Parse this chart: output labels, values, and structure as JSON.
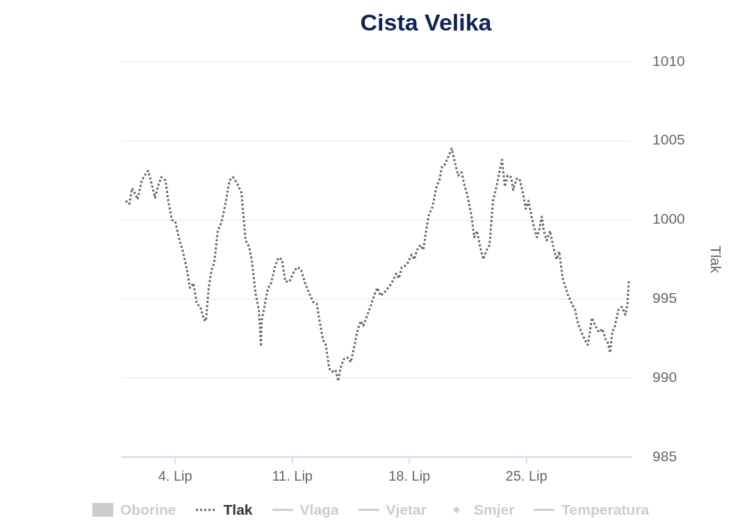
{
  "chart_data": {
    "type": "line",
    "title": "Cista Velika",
    "ylabel": "Tlak",
    "grid": "y",
    "legend": "bottom",
    "line_style": "dotted",
    "xlim": [
      "--05-31T19:00",
      "--07-01T07:00"
    ],
    "xticks": [
      {
        "value": "--06-04",
        "label": "4. Lip"
      },
      {
        "value": "--06-11",
        "label": "11. Lip"
      },
      {
        "value": "--06-18",
        "label": "18. Lip"
      },
      {
        "value": "--06-25",
        "label": "25. Lip"
      }
    ],
    "ylim": [
      985,
      1010
    ],
    "yticks": [
      985,
      990,
      995,
      1000,
      1005,
      1010
    ],
    "series": [
      {
        "name": "Oborine",
        "type": "bar",
        "color": "#cccccc"
      },
      {
        "name": "Tlak",
        "color": "#666666",
        "x": [
          "--06-01T01:00",
          "--06-01T06:00",
          "--06-01T10:00",
          "--06-01T15:00",
          "--06-01T18:00",
          "--06-02T00:00",
          "--06-02T04:00",
          "--06-02T09:00",
          "--06-02T13:00",
          "--06-02T19:00",
          "--06-02T23:00",
          "--06-03T04:00",
          "--06-03T10:00",
          "--06-03T14:00",
          "--06-03T19:00",
          "--06-04T00:00",
          "--06-04T05:00",
          "--06-04T11:00",
          "--06-04T17:00",
          "--06-04T21:00",
          "--06-05T02:00",
          "--06-05T07:00",
          "--06-05T12:00",
          "--06-05T17:00",
          "--06-05T20:00",
          "--06-06T00:00",
          "--06-06T04:00",
          "--06-06T08:00",
          "--06-06T13:00",
          "--06-06T18:00",
          "--06-07T00:00",
          "--06-07T06:00",
          "--06-07T11:00",
          "--06-07T18:00",
          "--06-07T23:00",
          "--06-08T05:00",
          "--06-08T10:00",
          "--06-08T14:00",
          "--06-08T19:00",
          "--06-09T00:00",
          "--06-09T03:00",
          "--06-09T04:00",
          "--06-09T08:00",
          "--06-09T13:00",
          "--06-09T17:00",
          "--06-09T23:00",
          "--06-10T04:00",
          "--06-10T09:00",
          "--06-10T14:00",
          "--06-10T20:00",
          "--06-11T03:00",
          "--06-11T08:00",
          "--06-11T13:00",
          "--06-11T19:00",
          "--06-12T01:00",
          "--06-12T06:00",
          "--06-12T11:00",
          "--06-12T16:00",
          "--06-12T20:00",
          "--06-13T00:00",
          "--06-13T05:00",
          "--06-13T09:00",
          "--06-13T14:00",
          "--06-13T18:00",
          "--06-13T21:00",
          "--06-14T02:00",
          "--06-14T07:00",
          "--06-14T12:00",
          "--06-14T17:00",
          "--06-14T21:00",
          "--06-15T02:00",
          "--06-15T06:00",
          "--06-15T11:00",
          "--06-15T17:00",
          "--06-15T22:00",
          "--06-16T02:00",
          "--06-16T07:00",
          "--06-16T12:00",
          "--06-16T16:00",
          "--06-16T21:00",
          "--06-17T01:00",
          "--06-17T05:00",
          "--06-17T09:00",
          "--06-17T13:00",
          "--06-17T18:00",
          "--06-17T22:00",
          "--06-18T03:00",
          "--06-18T07:00",
          "--06-18T11:00",
          "--06-18T16:00",
          "--06-18T20:00",
          "--06-19T00:00",
          "--06-19T04:00",
          "--06-19T09:00",
          "--06-19T15:00",
          "--06-19T19:00",
          "--06-19T23:00",
          "--06-20T03:00",
          "--06-20T08:00",
          "--06-20T13:00",
          "--06-20T17:00",
          "--06-20T22:00",
          "--06-21T03:00",
          "--06-21T07:00",
          "--06-21T12:00",
          "--06-21T17:00",
          "--06-21T21:00",
          "--06-22T01:00",
          "--06-22T06:00",
          "--06-22T10:00",
          "--06-22T15:00",
          "--06-22T19:00",
          "--06-23T00:00",
          "--06-23T05:00",
          "--06-23T09:00",
          "--06-23T13:00",
          "--06-23T17:00",
          "--06-23T21:00",
          "--06-24T02:00",
          "--06-24T05:00",
          "--06-24T10:00",
          "--06-24T14:00",
          "--06-24T19:00",
          "--06-24T23:00",
          "--06-25T03:00",
          "--06-25T06:00",
          "--06-25T10:00",
          "--06-25T15:00",
          "--06-25T18:00",
          "--06-25T22:00",
          "--06-26T01:00",
          "--06-26T05:00",
          "--06-26T10:00",
          "--06-26T15:00",
          "--06-26T19:00",
          "--06-26T23:00",
          "--06-27T04:00",
          "--06-27T07:00",
          "--06-27T12:00",
          "--06-27T17:00",
          "--06-27T22:00",
          "--06-28T02:00",
          "--06-28T07:00",
          "--06-28T12:00",
          "--06-28T16:00",
          "--06-28T19:00",
          "--06-28T22:00",
          "--06-29T03:00",
          "--06-29T08:00",
          "--06-29T13:00",
          "--06-29T18:00",
          "--06-29T21:00",
          "--06-30T00:00",
          "--06-30T03:00",
          "--06-30T07:00",
          "--06-30T12:00",
          "--06-30T17:00",
          "--06-30T22:00",
          "--07-01T01:00",
          "--07-01T03:00"
        ],
        "values": [
          1001.2,
          1001.0,
          1002.0,
          1001.6,
          1001.3,
          1002.5,
          1002.8,
          1003.1,
          1002.5,
          1001.4,
          1002.1,
          1002.7,
          1002.5,
          1001.2,
          1000.0,
          999.9,
          998.9,
          998.0,
          996.8,
          995.7,
          996.0,
          994.7,
          994.5,
          993.7,
          993.6,
          995.7,
          996.8,
          997.3,
          999.3,
          999.8,
          1001.0,
          1002.5,
          1002.7,
          1002.2,
          1001.7,
          998.7,
          998.3,
          997.4,
          995.4,
          994.3,
          992.0,
          993.6,
          994.5,
          995.7,
          995.9,
          997.0,
          997.6,
          997.5,
          996.1,
          996.1,
          996.8,
          997.0,
          996.8,
          995.9,
          995.3,
          994.8,
          994.7,
          993.4,
          992.4,
          992.1,
          990.6,
          990.4,
          990.5,
          989.8,
          990.6,
          991.2,
          991.3,
          991.0,
          992.0,
          992.9,
          993.6,
          993.3,
          993.9,
          994.6,
          995.3,
          995.7,
          995.2,
          995.4,
          995.6,
          995.9,
          996.2,
          996.6,
          996.3,
          997.0,
          997.1,
          997.3,
          997.8,
          997.5,
          998.1,
          998.4,
          998.1,
          999.3,
          1000.3,
          1000.8,
          1002.1,
          1002.5,
          1003.4,
          1003.5,
          1004.0,
          1004.5,
          1003.7,
          1002.8,
          1003.0,
          1002.2,
          1001.4,
          1000.3,
          998.9,
          999.3,
          998.2,
          997.5,
          998.1,
          998.4,
          1001.2,
          1002.1,
          1003.0,
          1003.8,
          1002.1,
          1002.8,
          1002.7,
          1001.9,
          1002.6,
          1002.6,
          1001.7,
          1000.7,
          1001.2,
          1000.5,
          999.7,
          998.9,
          999.3,
          1000.2,
          999.3,
          998.7,
          999.3,
          998.2,
          997.5,
          998.0,
          996.3,
          995.9,
          995.2,
          994.7,
          994.3,
          993.4,
          992.9,
          992.4,
          992.1,
          992.9,
          993.8,
          993.3,
          992.9,
          993.1,
          992.4,
          992.2,
          991.6,
          992.9,
          993.3,
          994.3,
          994.5,
          994.0,
          994.7,
          996.2
        ]
      },
      {
        "name": "Vlaga",
        "type": "line",
        "color": "#cccccc"
      },
      {
        "name": "Vjetar",
        "type": "line",
        "color": "#cccccc"
      },
      {
        "name": "Smjer",
        "type": "scatter",
        "color": "#cccccc",
        "marker": "diamond"
      },
      {
        "name": "Temperatura",
        "type": "line",
        "color": "#cccccc"
      }
    ]
  }
}
